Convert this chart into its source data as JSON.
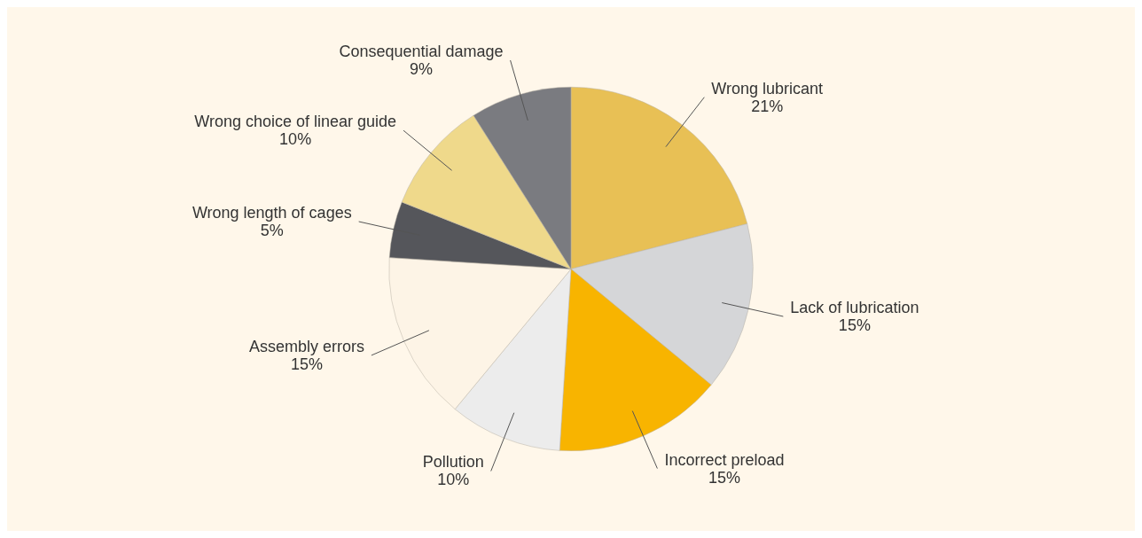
{
  "chart_data": {
    "type": "pie",
    "categories": [
      "Wrong lubricant",
      "Lack of lubrication",
      "Incorrect preload",
      "Pollution",
      "Assembly errors",
      "Wrong length of cages",
      "Wrong choice of linear guide",
      "Consequential damage"
    ],
    "values": [
      21,
      15,
      15,
      10,
      15,
      5,
      10,
      9
    ],
    "value_labels": [
      "21%",
      "15%",
      "15%",
      "10%",
      "15%",
      "5%",
      "10%",
      "9%"
    ],
    "colors": [
      "#e8c055",
      "#d5d6d8",
      "#f8b400",
      "#ececec",
      "#fdf4e6",
      "#55565b",
      "#efd98b",
      "#7a7b80"
    ],
    "legend": false
  }
}
